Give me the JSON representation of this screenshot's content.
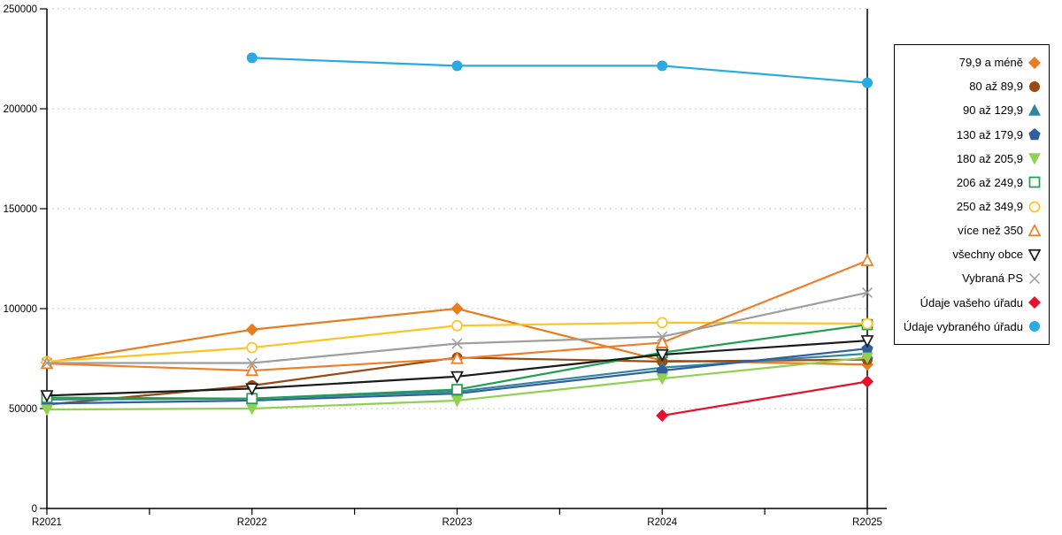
{
  "chart_data": {
    "type": "line",
    "title": "",
    "xlabel": "",
    "ylabel": "",
    "categories": [
      "R2021",
      "R2022",
      "R2023",
      "R2024",
      "R2025"
    ],
    "ylim": [
      0,
      250000
    ],
    "ytick_step": 50000,
    "yticks": [
      "0",
      "50000",
      "100000",
      "150000",
      "200000",
      "250000"
    ],
    "grid": "horizontal-dashed",
    "grid_color": "#c8c8c8",
    "axis_color": "#000000",
    "vertical_marker_line_at": "R2025",
    "legend_position": "right",
    "series": [
      {
        "name": "79,9 a méně",
        "marker": "diamond",
        "filled": true,
        "color": "#E87D1E",
        "values": [
          73000,
          89500,
          100000,
          74000,
          72000
        ]
      },
      {
        "name": "80 až 89,9",
        "marker": "circle",
        "filled": true,
        "color": "#9A4A10",
        "values": [
          52000,
          61500,
          75500,
          73500,
          74500
        ]
      },
      {
        "name": "90 až 129,9",
        "marker": "triangle-up",
        "filled": true,
        "color": "#31859C",
        "values": [
          54500,
          55000,
          58500,
          70500,
          77500
        ]
      },
      {
        "name": "130 až 179,9",
        "marker": "pentagon",
        "filled": true,
        "color": "#305E9E",
        "values": [
          52500,
          54000,
          57500,
          69000,
          80000
        ]
      },
      {
        "name": "180 až 205,9",
        "marker": "triangle-down",
        "filled": true,
        "color": "#92D050",
        "values": [
          49500,
          50000,
          54000,
          65000,
          75500
        ]
      },
      {
        "name": "206 až 249,9",
        "marker": "square",
        "filled": false,
        "color": "#1FA04E",
        "values": [
          55500,
          55000,
          59500,
          78000,
          92000
        ]
      },
      {
        "name": "250 až 349,9",
        "marker": "circle",
        "filled": false,
        "color": "#FFC420",
        "values": [
          73500,
          80500,
          91500,
          93000,
          92500
        ]
      },
      {
        "name": "více než 350",
        "marker": "triangle-up",
        "filled": false,
        "color": "#F07E28",
        "values": [
          72500,
          69000,
          75000,
          83000,
          124000
        ]
      },
      {
        "name": "všechny obce",
        "marker": "triangle-down",
        "filled": false,
        "color": "#1A1A1A",
        "values": [
          56500,
          60000,
          66000,
          77000,
          84000
        ]
      },
      {
        "name": "Vybraná PS",
        "marker": "x",
        "filled": false,
        "color": "#9E9E9E",
        "values": [
          72800,
          72800,
          82500,
          86000,
          108000
        ]
      },
      {
        "name": "Údaje vašeho úřadu",
        "marker": "diamond",
        "filled": true,
        "color": "#E8112D",
        "values": [
          null,
          null,
          null,
          46500,
          63500
        ]
      },
      {
        "name": "Údaje vybraného úřadu",
        "marker": "circle",
        "filled": true,
        "color": "#29ABE2",
        "values": [
          null,
          225500,
          221500,
          221500,
          213000
        ]
      }
    ]
  }
}
